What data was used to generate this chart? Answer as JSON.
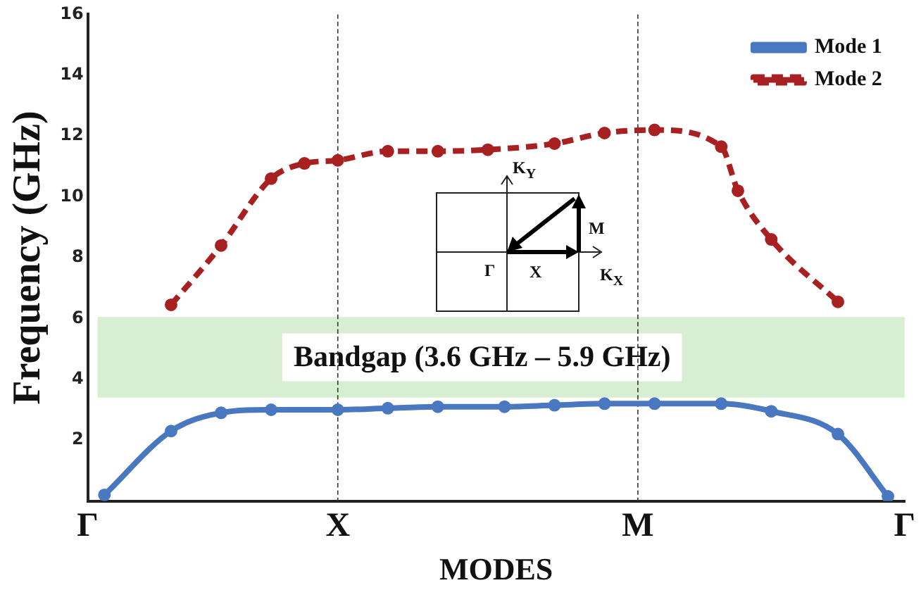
{
  "chart_data": {
    "type": "line",
    "xlabel": "MODES",
    "ylabel": "Frequency (GHz)",
    "categories": [
      "Γ",
      null,
      null,
      null,
      null,
      null,
      null,
      null,
      null,
      null,
      null,
      null,
      null,
      null,
      null,
      "X",
      null,
      null,
      null,
      null,
      null,
      null,
      null,
      null,
      null,
      null,
      null,
      null,
      null,
      null,
      null,
      null,
      null,
      "M",
      null,
      null,
      null,
      null,
      null,
      null,
      null,
      null,
      null,
      null,
      null,
      null,
      null,
      null,
      null,
      "Γ"
    ],
    "ylim": [
      0,
      16
    ],
    "yticks": [
      2,
      4,
      6,
      8,
      10,
      12,
      14,
      16
    ],
    "series": [
      {
        "name": "Mode 1",
        "color": "#4a78c0",
        "line_style": "solid",
        "values": [
          null,
          0.2,
          null,
          null,
          null,
          2.3,
          null,
          null,
          2.9,
          null,
          null,
          3.0,
          null,
          null,
          null,
          3.0,
          null,
          null,
          3.05,
          null,
          null,
          3.1,
          null,
          null,
          null,
          3.1,
          null,
          null,
          3.15,
          null,
          null,
          3.2,
          null,
          null,
          3.2,
          null,
          null,
          null,
          3.2,
          null,
          null,
          2.95,
          null,
          null,
          null,
          2.2,
          null,
          null,
          0.15,
          null
        ]
      },
      {
        "name": "Mode 2",
        "color": "#a82020",
        "line_style": "dashed",
        "values": [
          null,
          null,
          null,
          null,
          null,
          6.45,
          null,
          null,
          8.4,
          null,
          null,
          10.6,
          null,
          11.1,
          null,
          11.2,
          null,
          null,
          11.5,
          null,
          null,
          11.5,
          null,
          null,
          11.55,
          null,
          null,
          null,
          11.75,
          null,
          null,
          12.1,
          null,
          null,
          12.2,
          null,
          null,
          null,
          11.65,
          10.2,
          null,
          8.6,
          null,
          null,
          null,
          6.55,
          null,
          null,
          null,
          null
        ]
      }
    ],
    "ref_lines": [
      {
        "axis": "x",
        "value": "X",
        "line_style": "dashed",
        "color": "#333333"
      },
      {
        "axis": "x",
        "value": "M",
        "line_style": "dashed",
        "color": "#333333"
      }
    ],
    "bands": [
      {
        "axis": "y",
        "from": 3.4,
        "to": 6.05,
        "label": "Bandgap (3.6 GHz – 5.9 GHz)",
        "color": "#d8eed2"
      }
    ],
    "annotations": [
      "K$_{Y}$",
      "M",
      "Γ",
      "X",
      "K$_{X}$"
    ],
    "marker": "circle",
    "grid": false,
    "legend": "top right"
  }
}
